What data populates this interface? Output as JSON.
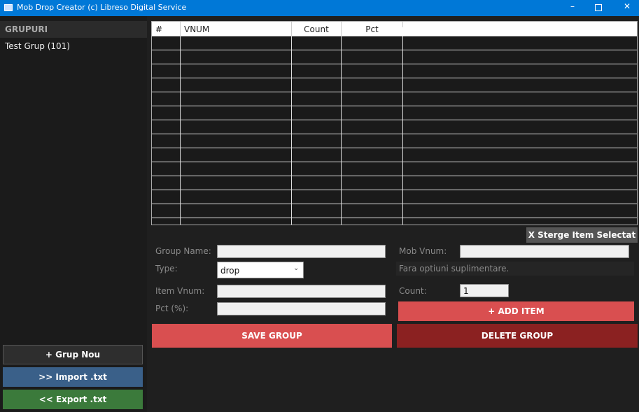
{
  "window": {
    "title": "Mob Drop Creator (c) Libreso Digital Service"
  },
  "sidebar": {
    "title": "GRUPURI",
    "groups": [
      "Test Grup  (101)"
    ],
    "buttons": [
      "+  Grup Nou",
      ">>  Import .txt",
      "<<  Export .txt"
    ]
  },
  "table": {
    "headers": [
      "#",
      "VNUM",
      "Count",
      "Pct"
    ]
  },
  "delete_item_button": "X  Sterge Item Selectat",
  "form": {
    "group_name_label": "Group Name:",
    "mob_vnum_label": "Mob Vnum:",
    "type_label": "Type:",
    "type_value": "drop",
    "options_note": "Fara optiuni suplimentare.",
    "item_vnum_label": "Item Vnum:",
    "count_label": "Count:",
    "count_value": "1",
    "pct_label": "Pct (%):",
    "add_item_button": "+  ADD ITEM"
  },
  "save_button": "SAVE GROUP",
  "delete_group_button": "DELETE GROUP"
}
